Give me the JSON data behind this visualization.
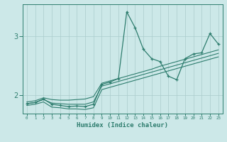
{
  "xlabel": "Humidex (Indice chaleur)",
  "x_values": [
    0,
    1,
    2,
    3,
    4,
    5,
    6,
    7,
    8,
    9,
    10,
    11,
    12,
    13,
    14,
    15,
    16,
    17,
    18,
    19,
    20,
    21,
    22,
    23
  ],
  "y_main": [
    1.85,
    1.87,
    1.93,
    1.84,
    1.82,
    1.8,
    1.81,
    1.8,
    1.84,
    2.18,
    2.22,
    2.28,
    3.42,
    3.15,
    2.78,
    2.62,
    2.57,
    2.32,
    2.26,
    2.62,
    2.7,
    2.72,
    3.05,
    2.87
  ],
  "y_upper": [
    1.88,
    1.9,
    1.95,
    1.92,
    1.91,
    1.91,
    1.92,
    1.93,
    1.97,
    2.2,
    2.24,
    2.28,
    2.32,
    2.36,
    2.4,
    2.44,
    2.49,
    2.53,
    2.57,
    2.61,
    2.65,
    2.69,
    2.73,
    2.77
  ],
  "y_lower": [
    1.82,
    1.84,
    1.88,
    1.79,
    1.78,
    1.76,
    1.76,
    1.75,
    1.78,
    2.09,
    2.13,
    2.17,
    2.21,
    2.25,
    2.29,
    2.33,
    2.37,
    2.41,
    2.45,
    2.49,
    2.53,
    2.57,
    2.61,
    2.65
  ],
  "y_mid": [
    1.85,
    1.87,
    1.92,
    1.86,
    1.85,
    1.84,
    1.84,
    1.84,
    1.88,
    2.15,
    2.19,
    2.23,
    2.27,
    2.31,
    2.35,
    2.39,
    2.43,
    2.47,
    2.51,
    2.55,
    2.59,
    2.63,
    2.67,
    2.71
  ],
  "line_color": "#2e7d6e",
  "bg_color": "#cce8e8",
  "grid_color": "#aacccc",
  "ylim": [
    1.68,
    3.55
  ],
  "yticks": [
    2,
    3
  ],
  "xlim": [
    -0.5,
    23.5
  ]
}
